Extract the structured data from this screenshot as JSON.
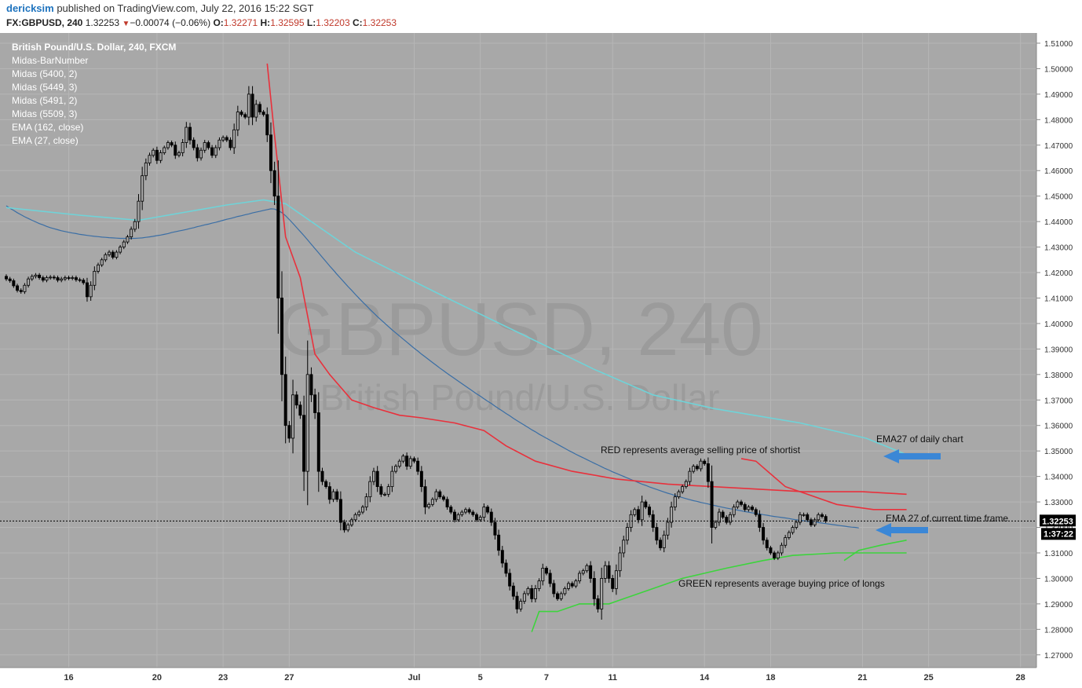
{
  "header": {
    "username": "dericksim",
    "published": " published on TradingView.com, July 22, 2016 15:22 SGT",
    "symbol": "FX:GBPUSD, 240",
    "last": "1.32253",
    "change": "−0.00074 (−0.06%)",
    "open_label": "O:",
    "open": "1.32271",
    "high_label": "H:",
    "high": "1.32595",
    "low_label": "L:",
    "low": "1.32203",
    "close_label": "C:",
    "close": "1.32253"
  },
  "legend": [
    "British Pound/U.S. Dollar, 240, FXCM",
    "Midas-BarNumber",
    "Midas (5400, 2)",
    "Midas (5449, 3)",
    "Midas (5491, 2)",
    "Midas (5509, 3)",
    "EMA (162, close)",
    "EMA (27, close)"
  ],
  "watermark": {
    "symbol": "GBPUSD, 240",
    "name": "British Pound/U.S. Dollar"
  },
  "annotations": {
    "red": "RED represents average selling price of shortist",
    "green": "GREEN represents average buying price of longs",
    "ema_daily": "EMA27 of daily chart",
    "ema_current": "EMA 27 of current time frame"
  },
  "price_tag": "1.32253",
  "countdown": "1:37:22",
  "colors": {
    "background": "#a8a8a8",
    "axis": "#ffffff",
    "grid": "#b6b6b6",
    "up_candle": "#a8a8a8",
    "down_candle": "#000000",
    "ema162": "#3a6ea5",
    "ema27": "#6fd3d8",
    "red": "#e8313c",
    "green": "#3dd43d",
    "arrow": "#3b87d6"
  },
  "chart_data": {
    "type": "candlestick",
    "ylim": [
      1.265,
      1.514
    ],
    "y_ticks": [
      "1.27000",
      "1.28000",
      "1.29000",
      "1.30000",
      "1.31000",
      "1.32000",
      "1.33000",
      "1.34000",
      "1.35000",
      "1.36000",
      "1.37000",
      "1.38000",
      "1.39000",
      "1.40000",
      "1.41000",
      "1.42000",
      "1.43000",
      "1.44000",
      "1.45000",
      "1.46000",
      "1.47000",
      "1.48000",
      "1.49000",
      "1.50000",
      "1.51000"
    ],
    "x_ticks": [
      {
        "label": "16",
        "bar": 17
      },
      {
        "label": "20",
        "bar": 41
      },
      {
        "label": "23",
        "bar": 59
      },
      {
        "label": "27",
        "bar": 77
      },
      {
        "label": "Jul",
        "bar": 111
      },
      {
        "label": "5",
        "bar": 129
      },
      {
        "label": "7",
        "bar": 147
      },
      {
        "label": "11",
        "bar": 165
      },
      {
        "label": "14",
        "bar": 190
      },
      {
        "label": "18",
        "bar": 208
      },
      {
        "label": "21",
        "bar": 233
      },
      {
        "label": "25",
        "bar": 251
      },
      {
        "label": "28",
        "bar": 276
      }
    ],
    "current_price": 1.32253,
    "close": [
      1.4175,
      1.4168,
      1.4148,
      1.413,
      1.4125,
      1.415,
      1.4175,
      1.4185,
      1.419,
      1.418,
      1.417,
      1.418,
      1.4182,
      1.418,
      1.417,
      1.4175,
      1.418,
      1.4178,
      1.418,
      1.4172,
      1.417,
      1.416,
      1.4105,
      1.415,
      1.4205,
      1.423,
      1.425,
      1.427,
      1.428,
      1.426,
      1.428,
      1.43,
      1.432,
      1.434,
      1.437,
      1.44,
      1.448,
      1.458,
      1.463,
      1.466,
      1.468,
      1.464,
      1.467,
      1.469,
      1.471,
      1.47,
      1.466,
      1.467,
      1.471,
      1.477,
      1.472,
      1.469,
      1.465,
      1.468,
      1.471,
      1.469,
      1.466,
      1.469,
      1.472,
      1.473,
      1.472,
      1.469,
      1.476,
      1.483,
      1.482,
      1.481,
      1.49,
      1.481,
      1.486,
      1.483,
      1.482,
      1.474,
      1.46,
      1.45,
      1.41,
      1.38,
      1.36,
      1.355,
      1.372,
      1.368,
      1.364,
      1.342,
      1.38,
      1.372,
      1.365,
      1.342,
      1.338,
      1.336,
      1.331,
      1.334,
      1.331,
      1.322,
      1.319,
      1.321,
      1.323,
      1.325,
      1.326,
      1.328,
      1.332,
      1.338,
      1.342,
      1.336,
      1.333,
      1.333,
      1.336,
      1.342,
      1.344,
      1.346,
      1.348,
      1.344,
      1.347,
      1.346,
      1.342,
      1.336,
      1.328,
      1.329,
      1.331,
      1.334,
      1.332,
      1.331,
      1.328,
      1.326,
      1.323,
      1.325,
      1.326,
      1.327,
      1.326,
      1.325,
      1.323,
      1.324,
      1.328,
      1.326,
      1.322,
      1.317,
      1.311,
      1.306,
      1.302,
      1.297,
      1.293,
      1.288,
      1.291,
      1.294,
      1.296,
      1.292,
      1.296,
      1.299,
      1.304,
      1.302,
      1.298,
      1.294,
      1.292,
      1.294,
      1.296,
      1.298,
      1.297,
      1.299,
      1.302,
      1.303,
      1.305,
      1.3,
      1.292,
      1.288,
      1.3,
      1.305,
      1.3,
      1.296,
      1.303,
      1.31,
      1.315,
      1.32,
      1.325,
      1.327,
      1.323,
      1.33,
      1.328,
      1.325,
      1.32,
      1.315,
      1.312,
      1.317,
      1.322,
      1.328,
      1.332,
      1.334,
      1.336,
      1.338,
      1.342,
      1.344,
      1.343,
      1.346,
      1.345,
      1.338,
      1.32,
      1.322,
      1.326,
      1.324,
      1.322,
      1.325,
      1.328,
      1.33,
      1.329,
      1.327,
      1.328,
      1.327,
      1.325,
      1.32,
      1.315,
      1.312,
      1.31,
      1.308,
      1.31,
      1.313,
      1.316,
      1.318,
      1.32,
      1.322,
      1.325,
      1.325,
      1.323,
      1.321,
      1.323,
      1.325,
      1.3243,
      1.32253
    ],
    "ema162": [
      1.4462,
      1.4452,
      1.4444,
      1.4435,
      1.4427,
      1.4419,
      1.4412,
      1.4405,
      1.4399,
      1.4392,
      1.4387,
      1.4381,
      1.4376,
      1.4372,
      1.4368,
      1.4364,
      1.4361,
      1.4358,
      1.4355,
      1.4353,
      1.435,
      1.4348,
      1.4346,
      1.4344,
      1.4342,
      1.4341,
      1.4339,
      1.4338,
      1.4337,
      1.4336,
      1.4335,
      1.4334,
      1.4334,
      1.4334,
      1.4334,
      1.4334,
      1.4335,
      1.4336,
      1.4338,
      1.434,
      1.4342,
      1.4345,
      1.4347,
      1.435,
      1.4353,
      1.4357,
      1.436,
      1.4363,
      1.4366,
      1.4369,
      1.4373,
      1.4376,
      1.438,
      1.4383,
      1.4387,
      1.439,
      1.4394,
      1.4397,
      1.4401,
      1.4405,
      1.4409,
      1.4412,
      1.4416,
      1.442,
      1.4423,
      1.4427,
      1.443,
      1.4434,
      1.4437,
      1.444,
      1.4444,
      1.4447,
      1.445,
      1.4449,
      1.4443,
      1.4435,
      1.4423,
      1.4408,
      1.4393,
      1.4377,
      1.4361,
      1.4345,
      1.4328,
      1.4311,
      1.4294,
      1.4277,
      1.426,
      1.4243,
      1.4226,
      1.421,
      1.4193,
      1.4177,
      1.4161,
      1.4145,
      1.413,
      1.4114,
      1.4099,
      1.4084,
      1.407,
      1.4055,
      1.4041,
      1.4027,
      1.4014,
      1.4001,
      1.3988,
      1.3975,
      1.3963,
      1.3951,
      1.3939,
      1.3927,
      1.3915,
      1.3903,
      1.3892,
      1.388,
      1.3869,
      1.3858,
      1.3847,
      1.3836,
      1.3825,
      1.3815,
      1.3804,
      1.3794,
      1.3784,
      1.3774,
      1.3764,
      1.3754,
      1.3744,
      1.3734,
      1.3724,
      1.3715,
      1.3705,
      1.3695,
      1.3686,
      1.3676,
      1.3666,
      1.3657,
      1.3647,
      1.3638,
      1.3628,
      1.3619,
      1.361,
      1.3601,
      1.3592,
      1.3583,
      1.3575,
      1.3566,
      1.3558,
      1.355,
      1.3542,
      1.3534,
      1.3526,
      1.3518,
      1.351,
      1.3502,
      1.3495,
      1.3487,
      1.348,
      1.3473,
      1.3466,
      1.3459,
      1.3452,
      1.3445,
      1.3438,
      1.3431,
      1.3425,
      1.3418,
      1.3412,
      1.3406,
      1.34,
      1.3394,
      1.3388,
      1.3382,
      1.3376,
      1.337,
      1.3365,
      1.3359,
      1.3354,
      1.3349,
      1.3344,
      1.3339,
      1.3334,
      1.333,
      1.3325,
      1.3321,
      1.3317,
      1.3313,
      1.3309,
      1.3305,
      1.3302,
      1.3298,
      1.3295,
      1.3292,
      1.3288,
      1.3285,
      1.3282,
      1.3279,
      1.3276,
      1.3273,
      1.3271,
      1.3268,
      1.3265,
      1.3262,
      1.326,
      1.3257,
      1.3255,
      1.3253,
      1.325,
      1.3248,
      1.3245,
      1.3243,
      1.3241,
      1.3239,
      1.3237,
      1.3235,
      1.3232,
      1.323,
      1.3228,
      1.3226,
      1.3224,
      1.3222,
      1.3221,
      1.3219,
      1.3217,
      1.3215,
      1.3213,
      1.3211,
      1.3209,
      1.3207,
      1.3205,
      1.3203,
      1.3201,
      1.32,
      1.3198
    ],
    "ema27_daily": [
      [
        0,
        1.4455
      ],
      [
        20,
        1.4425
      ],
      [
        36,
        1.4405
      ],
      [
        60,
        1.4465
      ],
      [
        70,
        1.4485
      ],
      [
        76,
        1.447
      ],
      [
        95,
        1.428
      ],
      [
        120,
        1.41
      ],
      [
        140,
        1.396
      ],
      [
        160,
        1.382
      ],
      [
        176,
        1.372
      ],
      [
        193,
        1.3665
      ],
      [
        216,
        1.361
      ],
      [
        234,
        1.355
      ],
      [
        246,
        1.348
      ]
    ],
    "red_line": [
      [
        71,
        1.502
      ],
      [
        73,
        1.474
      ],
      [
        76,
        1.434
      ],
      [
        80,
        1.418
      ],
      [
        84,
        1.388
      ],
      [
        88,
        1.38
      ],
      [
        94,
        1.37
      ],
      [
        100,
        1.367
      ],
      [
        107,
        1.364
      ],
      [
        113,
        1.363
      ],
      [
        122,
        1.361
      ],
      [
        130,
        1.358
      ],
      [
        136,
        1.352
      ],
      [
        144,
        1.346
      ],
      [
        154,
        1.342
      ],
      [
        166,
        1.339
      ],
      [
        180,
        1.337
      ],
      [
        192,
        1.336
      ],
      [
        205,
        1.335
      ],
      [
        217,
        1.334
      ],
      [
        233,
        1.334
      ],
      [
        245,
        1.333
      ]
    ],
    "red_line_2": [
      [
        200,
        1.347
      ],
      [
        204,
        1.346
      ],
      [
        208,
        1.341
      ],
      [
        212,
        1.336
      ],
      [
        218,
        1.333
      ],
      [
        226,
        1.329
      ],
      [
        236,
        1.327
      ],
      [
        245,
        1.327
      ]
    ],
    "green_line": [
      [
        143,
        1.279
      ],
      [
        145,
        1.287
      ],
      [
        150,
        1.287
      ],
      [
        156,
        1.29
      ],
      [
        164,
        1.29
      ],
      [
        170,
        1.293
      ],
      [
        176,
        1.296
      ],
      [
        184,
        1.3
      ],
      [
        190,
        1.302
      ],
      [
        196,
        1.304
      ],
      [
        206,
        1.307
      ],
      [
        214,
        1.309
      ],
      [
        226,
        1.31
      ],
      [
        236,
        1.31
      ],
      [
        245,
        1.31
      ]
    ],
    "green_line_2": [
      [
        228,
        1.307
      ],
      [
        232,
        1.311
      ],
      [
        238,
        1.313
      ],
      [
        245,
        1.315
      ]
    ]
  }
}
